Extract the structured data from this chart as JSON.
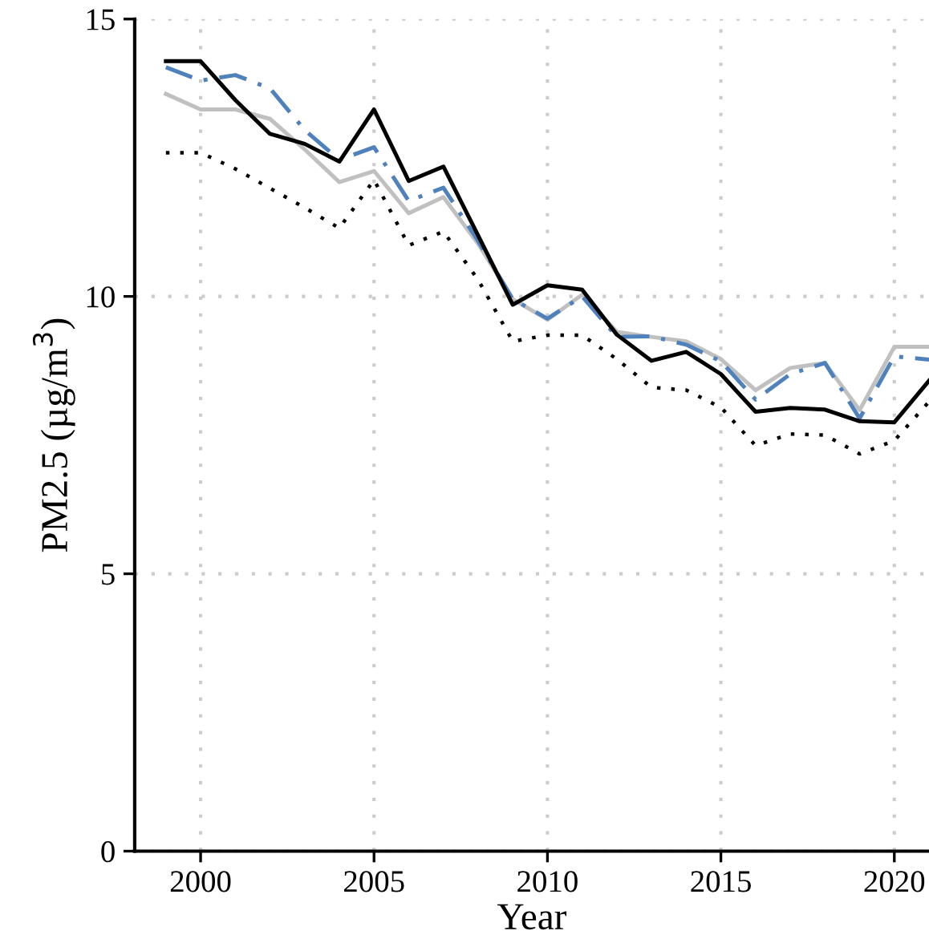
{
  "chart_data": {
    "type": "line",
    "xlabel": "Year",
    "ylabel": "PM2.5 (µg/m$^{3}$)",
    "x": [
      1999,
      2000,
      2001,
      2002,
      2003,
      2004,
      2005,
      2006,
      2007,
      2008,
      2009,
      2010,
      2011,
      2012,
      2013,
      2014,
      2015,
      2016,
      2017,
      2018,
      2019,
      2020,
      2021
    ],
    "series": [
      {
        "color": "#c0c0c0",
        "line_style": "solid",
        "values": [
          13.65,
          13.37,
          13.37,
          13.2,
          12.65,
          12.06,
          12.26,
          11.5,
          11.79,
          10.95,
          9.95,
          9.58,
          10.03,
          9.36,
          9.27,
          9.19,
          8.87,
          8.31,
          8.71,
          8.8,
          7.95,
          9.09,
          9.09
        ]
      },
      {
        "color": "#4f81bd",
        "line_style": "dashdot",
        "values": [
          14.13,
          13.89,
          13.99,
          13.75,
          13.0,
          12.46,
          12.69,
          11.72,
          11.96,
          11.0,
          9.95,
          9.6,
          10.0,
          9.27,
          9.28,
          9.13,
          8.83,
          8.14,
          8.6,
          8.8,
          7.8,
          8.92,
          8.86
        ]
      },
      {
        "color": "#000000",
        "line_style": "dotted",
        "values": [
          12.59,
          12.59,
          12.3,
          11.95,
          11.6,
          11.23,
          12.1,
          10.92,
          11.17,
          10.3,
          9.19,
          9.3,
          9.3,
          8.87,
          8.36,
          8.31,
          8.0,
          7.31,
          7.52,
          7.5,
          7.16,
          7.4,
          8.1
        ]
      },
      {
        "color": "#000000",
        "line_style": "solid",
        "values": [
          14.24,
          14.24,
          13.54,
          12.93,
          12.75,
          12.43,
          13.37,
          12.08,
          12.34,
          11.1,
          9.85,
          10.2,
          10.12,
          9.31,
          8.84,
          9.0,
          8.6,
          7.92,
          7.99,
          7.96,
          7.75,
          7.73,
          8.48
        ]
      }
    ],
    "xlim": [
      1998.1,
      2021
    ],
    "xticks": [
      2000,
      2005,
      2010,
      2015,
      2020
    ],
    "ylim": [
      0,
      15
    ],
    "yticks": [
      0,
      5,
      10,
      15
    ],
    "grid": true
  }
}
